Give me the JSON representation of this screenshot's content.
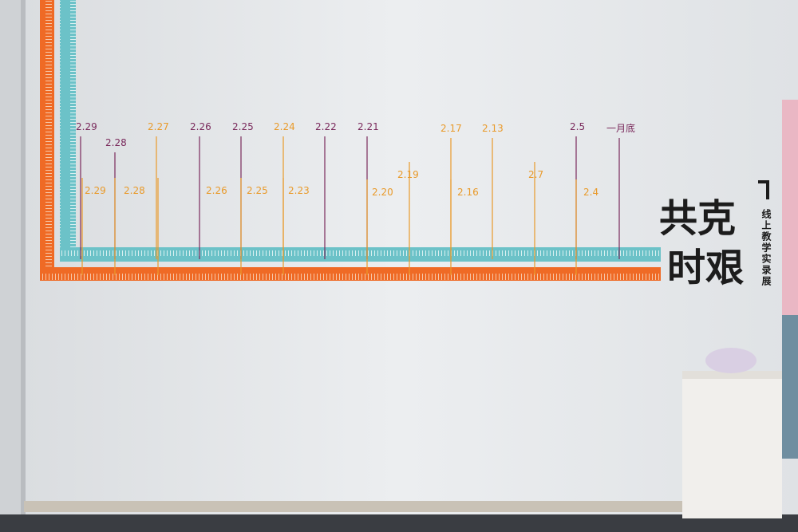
{
  "exhibit": {
    "title_lines": [
      "共克",
      "时艰"
    ],
    "subtitle": "线上教学实录展",
    "upper_dates": [
      "2.29",
      "2.28",
      "2.27",
      "2.26",
      "2.25",
      "2.24",
      "2.22",
      "2.21",
      "2.17",
      "2.13",
      "2.5",
      "一月底"
    ],
    "lower_dates": [
      "2.29",
      "2.28",
      "2.26",
      "2.25",
      "2.23",
      "2.20",
      "2.19",
      "2.16",
      "2.7",
      "2.4"
    ]
  }
}
